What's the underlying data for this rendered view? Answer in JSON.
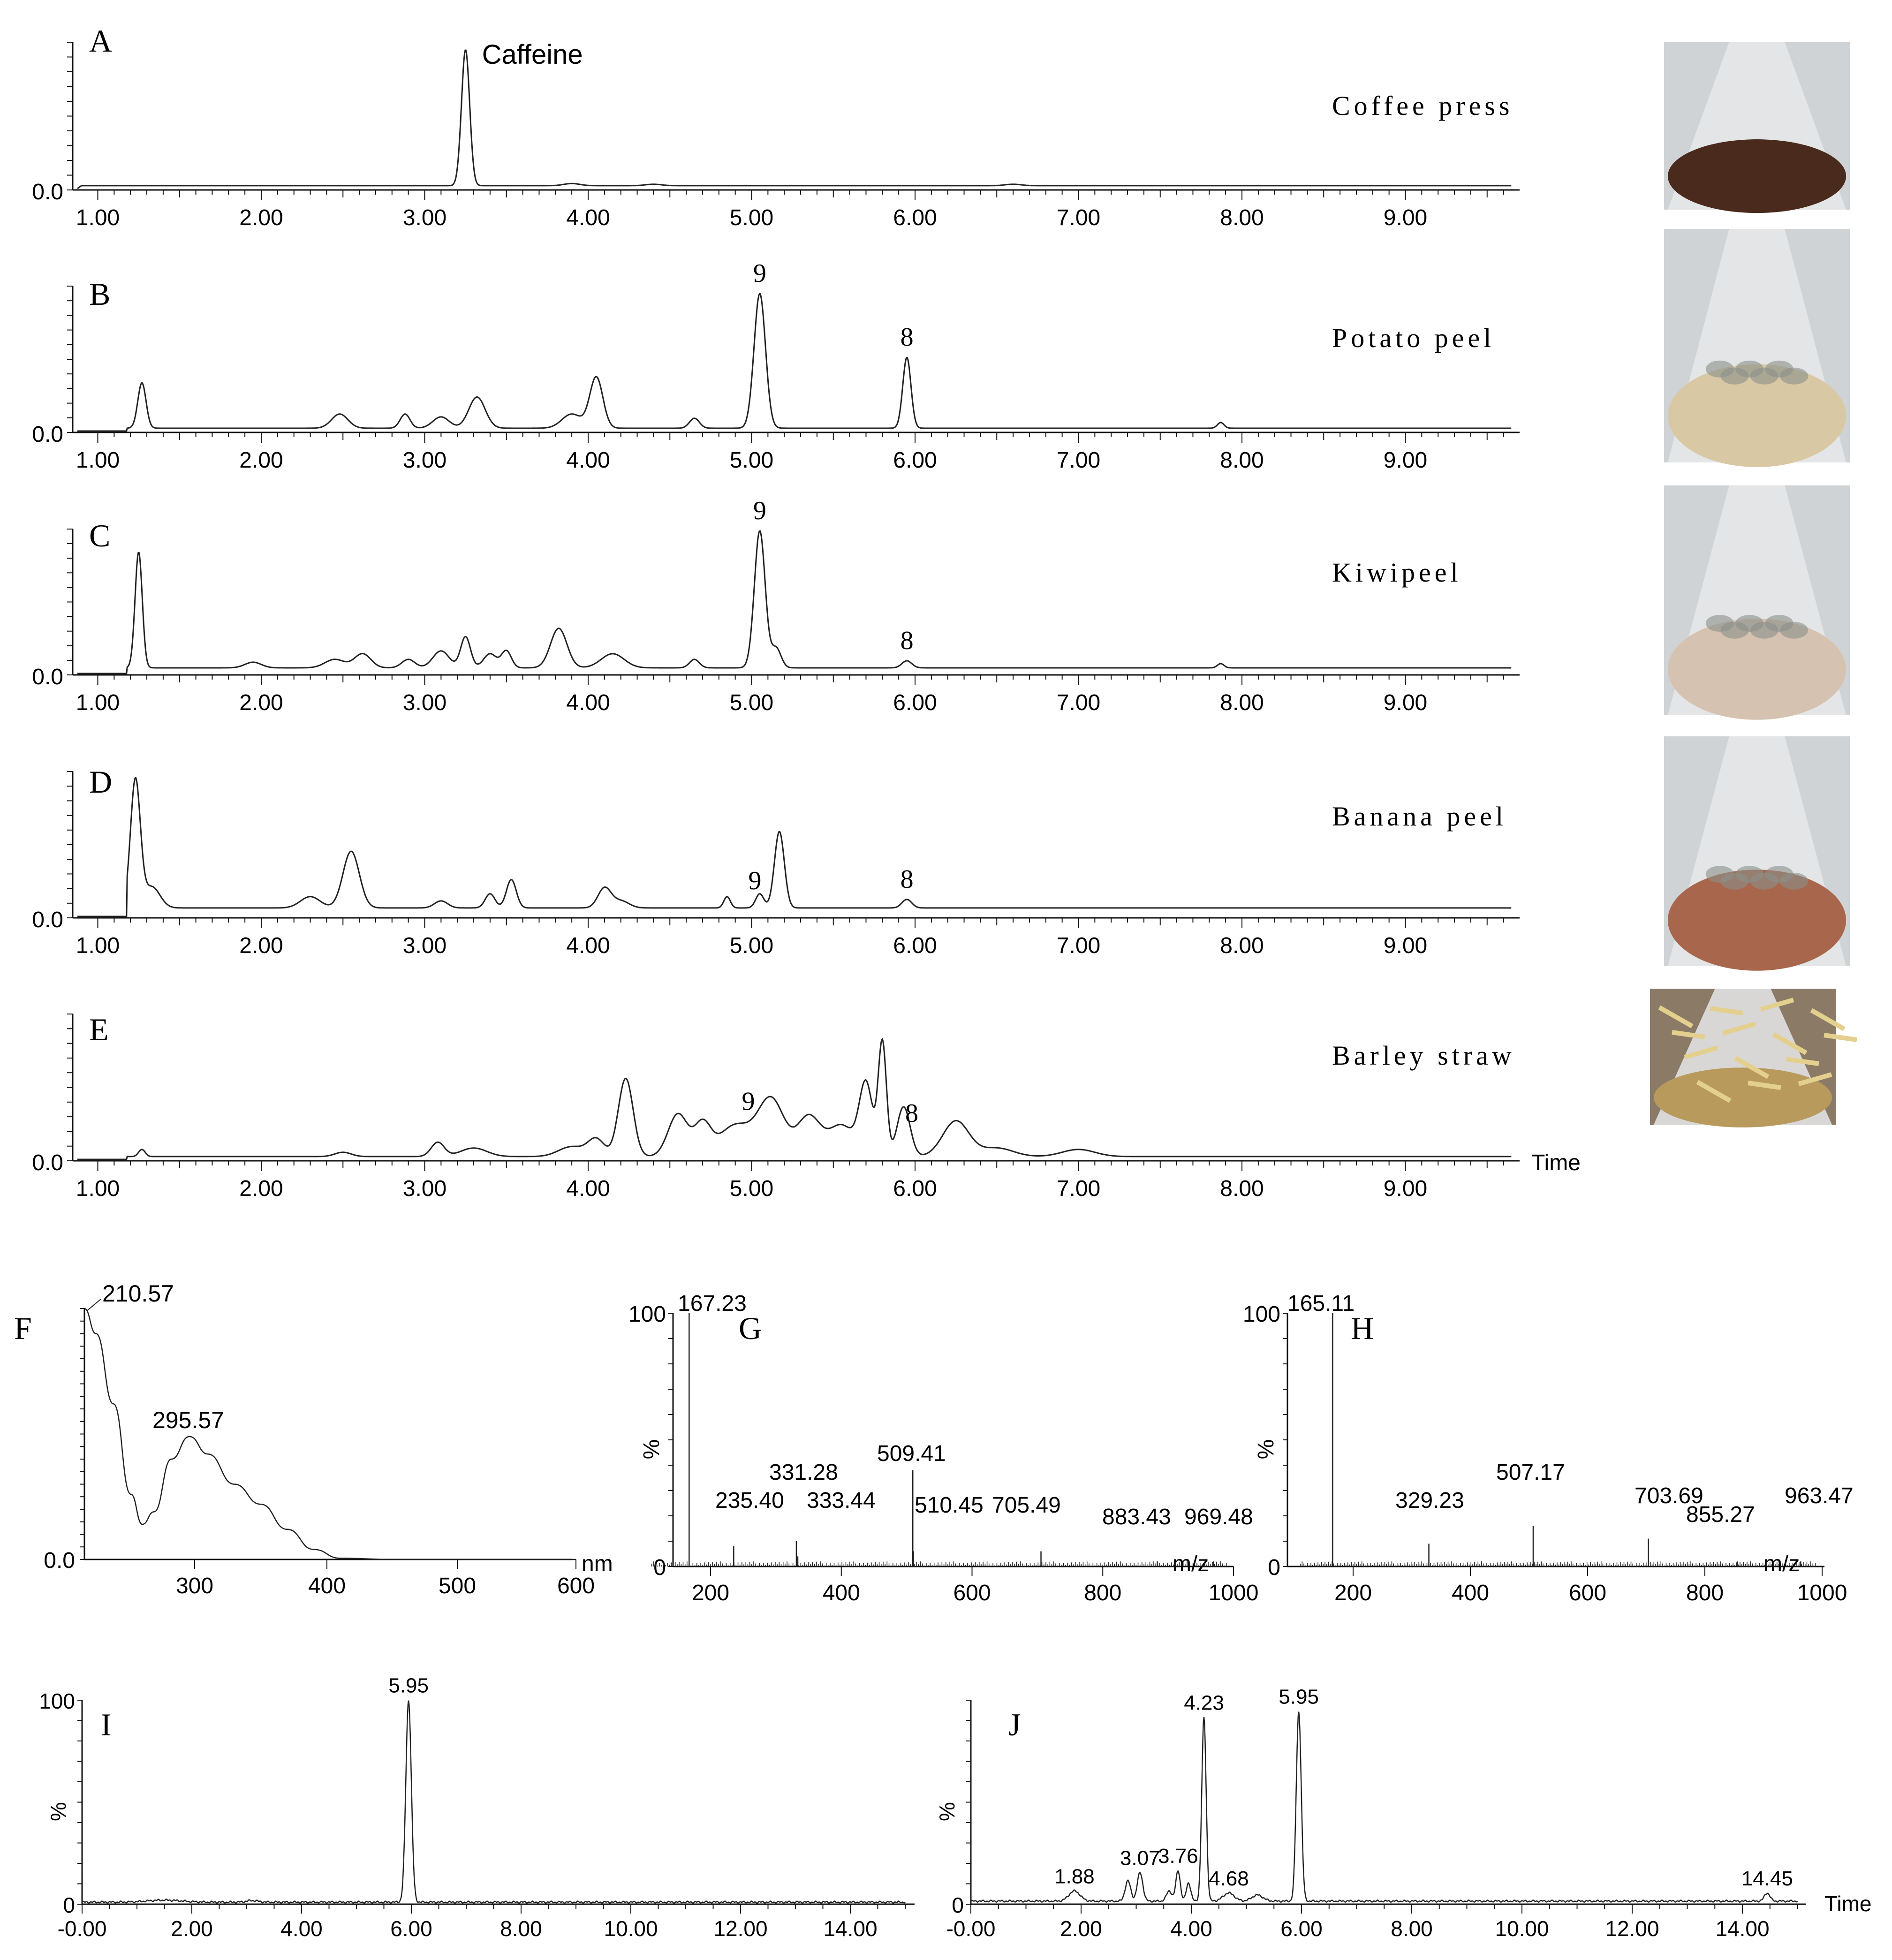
{
  "figure": {
    "colors": {
      "trace": "#222222",
      "axis": "#111111",
      "coffee": "#4a2a1c",
      "potato": "#d9c8a4",
      "kiwi": "#d6c2b0",
      "banana": "#a8674c",
      "barley": "#b89a5c",
      "glass": "#e6e8ea"
    }
  },
  "chart_data": [
    {
      "id": "A",
      "type": "line",
      "panel_label": "A",
      "sample": "Coffee press",
      "x_ticks": [
        "1.00",
        "2.00",
        "3.00",
        "4.00",
        "5.00",
        "6.00",
        "7.00",
        "8.00",
        "9.00"
      ],
      "y_zero_label": "0.0",
      "xlim": [
        0.9,
        9.65
      ],
      "ylim": [
        0,
        1.0
      ],
      "baseline": 0.02,
      "peaks": [
        [
          3.25,
          0.95,
          0.025
        ],
        [
          3.9,
          0.015,
          0.05
        ],
        [
          4.4,
          0.01,
          0.05
        ],
        [
          6.6,
          0.01,
          0.05
        ]
      ],
      "annotations": [
        {
          "x": 3.25,
          "text": "Caffeine"
        }
      ],
      "photo": "coffee"
    },
    {
      "id": "B",
      "type": "line",
      "panel_label": "B",
      "sample": "Potato peel",
      "x_ticks": [
        "1.00",
        "2.00",
        "3.00",
        "4.00",
        "5.00",
        "6.00",
        "7.00",
        "8.00",
        "9.00"
      ],
      "y_zero_label": "0.0",
      "xlim": [
        0.9,
        9.65
      ],
      "ylim": [
        0,
        1.0
      ],
      "baseline": 0.02,
      "peaks": [
        [
          1.27,
          0.32,
          0.025
        ],
        [
          2.48,
          0.1,
          0.05
        ],
        [
          2.88,
          0.1,
          0.03
        ],
        [
          3.1,
          0.08,
          0.05
        ],
        [
          3.32,
          0.22,
          0.05
        ],
        [
          3.9,
          0.1,
          0.06
        ],
        [
          4.05,
          0.36,
          0.04
        ],
        [
          4.65,
          0.07,
          0.03
        ],
        [
          5.05,
          0.95,
          0.035
        ],
        [
          5.95,
          0.5,
          0.025
        ],
        [
          7.87,
          0.04,
          0.02
        ]
      ],
      "annotations": [
        {
          "x": 5.05,
          "text": "9"
        },
        {
          "x": 5.95,
          "text": "8"
        }
      ],
      "photo": "potato"
    },
    {
      "id": "C",
      "type": "line",
      "panel_label": "C",
      "sample": "Kiwipeel",
      "x_ticks": [
        "1.00",
        "2.00",
        "3.00",
        "4.00",
        "5.00",
        "6.00",
        "7.00",
        "8.00",
        "9.00"
      ],
      "y_zero_label": "0.0",
      "xlim": [
        0.9,
        9.65
      ],
      "ylim": [
        0,
        1.0
      ],
      "baseline": 0.04,
      "peaks": [
        [
          1.25,
          0.82,
          0.022
        ],
        [
          1.95,
          0.04,
          0.05
        ],
        [
          2.45,
          0.06,
          0.06
        ],
        [
          2.62,
          0.1,
          0.05
        ],
        [
          2.9,
          0.06,
          0.04
        ],
        [
          3.1,
          0.12,
          0.05
        ],
        [
          3.25,
          0.22,
          0.03
        ],
        [
          3.4,
          0.1,
          0.04
        ],
        [
          3.5,
          0.12,
          0.03
        ],
        [
          3.82,
          0.28,
          0.05
        ],
        [
          4.15,
          0.1,
          0.07
        ],
        [
          4.65,
          0.06,
          0.03
        ],
        [
          5.05,
          0.97,
          0.033
        ],
        [
          5.15,
          0.14,
          0.03
        ],
        [
          5.95,
          0.05,
          0.03
        ],
        [
          7.87,
          0.03,
          0.02
        ]
      ],
      "annotations": [
        {
          "x": 5.05,
          "text": "9"
        },
        {
          "x": 5.95,
          "text": "8"
        }
      ],
      "photo": "kiwi"
    },
    {
      "id": "D",
      "type": "line",
      "panel_label": "D",
      "sample": "Banana peel",
      "x_ticks": [
        "1.00",
        "2.00",
        "3.00",
        "4.00",
        "5.00",
        "6.00",
        "7.00",
        "8.00",
        "9.00"
      ],
      "y_zero_label": "0.0",
      "xlim": [
        0.9,
        9.65
      ],
      "ylim": [
        0,
        1.0
      ],
      "baseline": 0.06,
      "peaks": [
        [
          1.23,
          0.9,
          0.03
        ],
        [
          1.33,
          0.15,
          0.05
        ],
        [
          2.3,
          0.08,
          0.06
        ],
        [
          2.55,
          0.4,
          0.05
        ],
        [
          3.1,
          0.05,
          0.04
        ],
        [
          3.4,
          0.1,
          0.03
        ],
        [
          3.53,
          0.2,
          0.03
        ],
        [
          4.1,
          0.14,
          0.04
        ],
        [
          4.2,
          0.05,
          0.05
        ],
        [
          4.85,
          0.08,
          0.02
        ],
        [
          5.05,
          0.1,
          0.025
        ],
        [
          5.17,
          0.54,
          0.03
        ],
        [
          5.95,
          0.06,
          0.03
        ]
      ],
      "annotations": [
        {
          "x": 5.02,
          "text": "9"
        },
        {
          "x": 5.95,
          "text": "8"
        }
      ],
      "photo": "banana"
    },
    {
      "id": "E",
      "type": "line",
      "panel_label": "E",
      "sample": "Barley straw",
      "x_ticks": [
        "1.00",
        "2.00",
        "3.00",
        "4.00",
        "5.00",
        "6.00",
        "7.00",
        "8.00",
        "9.00"
      ],
      "y_zero_label": "0.0",
      "x_title": "Time",
      "xlim": [
        0.9,
        9.65
      ],
      "ylim": [
        0,
        1.0
      ],
      "baseline": 0.02,
      "peaks": [
        [
          1.27,
          0.05,
          0.02
        ],
        [
          2.5,
          0.03,
          0.05
        ],
        [
          3.08,
          0.1,
          0.04
        ],
        [
          3.3,
          0.06,
          0.08
        ],
        [
          3.9,
          0.07,
          0.08
        ],
        [
          4.05,
          0.12,
          0.05
        ],
        [
          4.23,
          0.55,
          0.045
        ],
        [
          4.55,
          0.3,
          0.06
        ],
        [
          4.7,
          0.22,
          0.05
        ],
        [
          4.9,
          0.22,
          0.1
        ],
        [
          5.12,
          0.4,
          0.08
        ],
        [
          5.35,
          0.28,
          0.07
        ],
        [
          5.55,
          0.22,
          0.08
        ],
        [
          5.7,
          0.5,
          0.04
        ],
        [
          5.8,
          0.8,
          0.025
        ],
        [
          5.93,
          0.35,
          0.04
        ],
        [
          6.25,
          0.25,
          0.08
        ],
        [
          6.5,
          0.06,
          0.1
        ],
        [
          7.0,
          0.05,
          0.1
        ]
      ],
      "annotations": [
        {
          "x": 4.98,
          "text": "9"
        },
        {
          "x": 5.98,
          "text": "8"
        }
      ],
      "photo": "barley"
    },
    {
      "id": "F",
      "type": "line",
      "panel_label": "F",
      "x_ticks": [
        "300",
        "400",
        "500",
        "600"
      ],
      "x_tick_values": [
        300,
        400,
        500,
        600
      ],
      "y_zero_label": "0.0",
      "x_unit": "nm",
      "xlim": [
        205,
        600
      ],
      "ylim": [
        0,
        1.0
      ],
      "x": [
        205,
        215,
        230,
        245,
        255,
        265,
        280,
        295.57,
        310,
        330,
        350,
        370,
        390,
        410,
        450,
        600
      ],
      "y": [
        1.0,
        0.9,
        0.62,
        0.26,
        0.14,
        0.19,
        0.4,
        0.49,
        0.42,
        0.3,
        0.22,
        0.12,
        0.04,
        0.005,
        0.0,
        0.0
      ],
      "annotations": [
        {
          "x": 205,
          "text": "210.57"
        },
        {
          "x": 295.57,
          "text": "295.57"
        }
      ]
    },
    {
      "id": "G",
      "type": "bar",
      "panel_label": "G",
      "x_ticks": [
        "200",
        "400",
        "600",
        "800",
        "1000"
      ],
      "x_tick_values": [
        200,
        400,
        600,
        800,
        1000
      ],
      "y_ticks": [
        "100",
        "0"
      ],
      "y_title": "%",
      "x_unit": "m/z",
      "xlim": [
        100,
        1000
      ],
      "ylim": [
        0,
        100
      ],
      "peaks_mz": [
        167.23,
        235.4,
        331.28,
        333.44,
        509.41,
        510.45,
        705.49,
        883.43,
        969.48
      ],
      "peaks_intensity": [
        100,
        8,
        10,
        4,
        38,
        6,
        6,
        2,
        2
      ],
      "labels": [
        "167.23",
        "235.40",
        "331.28",
        "333.44",
        "509.41",
        "510.45",
        "705.49",
        "883.43",
        "969.48"
      ]
    },
    {
      "id": "H",
      "type": "bar",
      "panel_label": "H",
      "x_ticks": [
        "200",
        "400",
        "600",
        "800",
        "1000"
      ],
      "x_tick_values": [
        200,
        400,
        600,
        800,
        1000
      ],
      "y_ticks": [
        "100",
        "0"
      ],
      "y_title": "%",
      "x_unit": "m/z",
      "xlim": [
        100,
        1000
      ],
      "ylim": [
        0,
        100
      ],
      "peaks_mz": [
        165.11,
        329.23,
        507.17,
        703.69,
        855.27,
        963.47
      ],
      "peaks_intensity": [
        100,
        9,
        16,
        11,
        2,
        2
      ],
      "labels": [
        "165.11",
        "329.23",
        "507.17",
        "703.69",
        "855.27",
        "963.47"
      ]
    },
    {
      "id": "I",
      "type": "line",
      "panel_label": "I",
      "x_ticks": [
        "-0.00",
        "2.00",
        "4.00",
        "6.00",
        "8.00",
        "10.00",
        "12.00",
        "14.00"
      ],
      "x_tick_values": [
        0,
        2,
        4,
        6,
        8,
        10,
        12,
        14
      ],
      "y_ticks": [
        "100",
        "0"
      ],
      "y_title": "%",
      "xlim": [
        -0.05,
        15.0
      ],
      "ylim": [
        0,
        100
      ],
      "baseline": 0.5,
      "peaks": [
        [
          5.95,
          99,
          0.05
        ],
        [
          1.5,
          1,
          0.3
        ],
        [
          3.1,
          0.8,
          0.1
        ]
      ],
      "annotations": [
        {
          "x": 5.95,
          "text": "5.95"
        }
      ]
    },
    {
      "id": "J",
      "type": "line",
      "panel_label": "J",
      "x_ticks": [
        "-0.00",
        "2.00",
        "4.00",
        "6.00",
        "8.00",
        "10.00",
        "12.00",
        "14.00"
      ],
      "x_tick_values": [
        0,
        2,
        4,
        6,
        8,
        10,
        12,
        14
      ],
      "y_ticks": [
        "0"
      ],
      "y_title": "%",
      "x_title": "Time",
      "xlim": [
        -0.05,
        15.0
      ],
      "ylim": [
        0,
        100
      ],
      "baseline": 1,
      "peaks": [
        [
          1.88,
          5,
          0.1
        ],
        [
          2.85,
          10,
          0.05
        ],
        [
          3.07,
          14,
          0.05
        ],
        [
          3.6,
          5,
          0.05
        ],
        [
          3.76,
          15,
          0.04
        ],
        [
          3.95,
          9,
          0.04
        ],
        [
          4.23,
          90,
          0.04
        ],
        [
          4.68,
          4,
          0.1
        ],
        [
          5.2,
          3,
          0.1
        ],
        [
          5.95,
          93,
          0.045
        ],
        [
          14.45,
          4,
          0.05
        ]
      ],
      "annotations": [
        {
          "x": 1.88,
          "text": "1.88"
        },
        {
          "x": 3.07,
          "text": "3.07"
        },
        {
          "x": 3.76,
          "text": "3.76"
        },
        {
          "x": 4.23,
          "text": "4.23"
        },
        {
          "x": 4.68,
          "text": "4.68"
        },
        {
          "x": 5.95,
          "text": "5.95"
        },
        {
          "x": 14.45,
          "text": "14.45"
        }
      ]
    }
  ]
}
